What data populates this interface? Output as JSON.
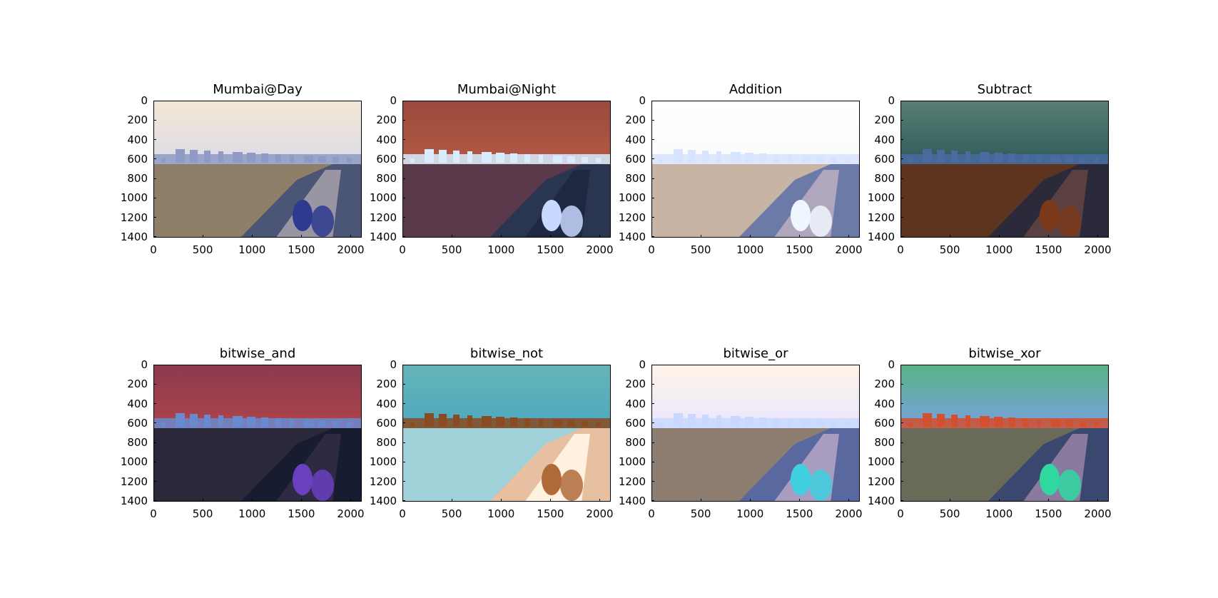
{
  "chart_data": [
    {
      "type": "image",
      "title": "Mumbai@Day",
      "xlim": [
        0,
        2112
      ],
      "ylim": [
        1408,
        0
      ],
      "xticks": [
        0,
        500,
        1000,
        1500,
        2000
      ],
      "yticks": [
        0,
        200,
        400,
        600,
        800,
        1000,
        1200,
        1400
      ],
      "colors": {
        "sky_top": "#f4e6d6",
        "sky_bottom": "#dadce8",
        "city": "#8f9bc4",
        "sea": "#8f7e68",
        "rocks": "#4b5677",
        "walk": "#9a95a2",
        "figures": "#2d3a8f"
      }
    },
    {
      "type": "image",
      "title": "Mumbai@Night",
      "xlim": [
        0,
        2112
      ],
      "ylim": [
        1408,
        0
      ],
      "xticks": [
        0,
        500,
        1000,
        1500,
        2000
      ],
      "yticks": [
        0,
        200,
        400,
        600,
        800,
        1000,
        1200,
        1400
      ],
      "colors": {
        "sky_top": "#9a4a3c",
        "sky_bottom": "#b45a45",
        "city": "#d8ecff",
        "sea": "#5a3a4a",
        "rocks": "#2a3550",
        "walk": "#1e2840",
        "figures": "#c8d8ff"
      }
    },
    {
      "type": "image",
      "title": "Addition",
      "xlim": [
        0,
        2112
      ],
      "ylim": [
        1408,
        0
      ],
      "xticks": [
        0,
        500,
        1000,
        1500,
        2000
      ],
      "yticks": [
        0,
        200,
        400,
        600,
        800,
        1000,
        1200,
        1400
      ],
      "colors": {
        "sky_top": "#ffffff",
        "sky_bottom": "#fbfbfb",
        "city": "#d7e4ff",
        "sea": "#c8b4a4",
        "rocks": "#6c7aa8",
        "walk": "#b0a6be",
        "figures": "#f0f6ff"
      }
    },
    {
      "type": "image",
      "title": "Subtract",
      "xlim": [
        0,
        2112
      ],
      "ylim": [
        1408,
        0
      ],
      "xticks": [
        0,
        500,
        1000,
        1500,
        2000
      ],
      "yticks": [
        0,
        200,
        400,
        600,
        800,
        1000,
        1200,
        1400
      ],
      "colors": {
        "sky_top": "#587e74",
        "sky_bottom": "#2c5a5a",
        "city": "#4a6aa0",
        "sea": "#5c3420",
        "rocks": "#2a2a3a",
        "walk": "#5a4040",
        "figures": "#7a3a1a"
      }
    },
    {
      "type": "image",
      "title": "bitwise_and",
      "xlim": [
        0,
        2112
      ],
      "ylim": [
        1408,
        0
      ],
      "xticks": [
        0,
        500,
        1000,
        1500,
        2000
      ],
      "yticks": [
        0,
        200,
        400,
        600,
        800,
        1000,
        1200,
        1400
      ],
      "colors": {
        "sky_top": "#8a3a50",
        "sky_bottom": "#b0444a",
        "city": "#6a8ad0",
        "sea": "#2a2a3a",
        "rocks": "#181c30",
        "walk": "#2e2a44",
        "figures": "#6a40c0"
      }
    },
    {
      "type": "image",
      "title": "bitwise_not",
      "xlim": [
        0,
        2112
      ],
      "ylim": [
        1408,
        0
      ],
      "xticks": [
        0,
        500,
        1000,
        1500,
        2000
      ],
      "yticks": [
        0,
        200,
        400,
        600,
        800,
        1000,
        1200,
        1400
      ],
      "colors": {
        "sky_top": "#66b4b8",
        "sky_bottom": "#4ca8c0",
        "city": "#8a4a22",
        "sea": "#a0d0d8",
        "rocks": "#e6c0a0",
        "walk": "#fff0e0",
        "figures": "#b06a3a"
      }
    },
    {
      "type": "image",
      "title": "bitwise_or",
      "xlim": [
        0,
        2112
      ],
      "ylim": [
        1408,
        0
      ],
      "xticks": [
        0,
        500,
        1000,
        1500,
        2000
      ],
      "yticks": [
        0,
        200,
        400,
        600,
        800,
        1000,
        1200,
        1400
      ],
      "colors": {
        "sky_top": "#fff4e8",
        "sky_bottom": "#e8e6ff",
        "city": "#c8d8ff",
        "sea": "#8e7e72",
        "rocks": "#5a68a0",
        "walk": "#a89cc0",
        "figures": "#40d0e0"
      }
    },
    {
      "type": "image",
      "title": "bitwise_xor",
      "xlim": [
        0,
        2112
      ],
      "ylim": [
        1408,
        0
      ],
      "xticks": [
        0,
        500,
        1000,
        1500,
        2000
      ],
      "yticks": [
        0,
        200,
        400,
        600,
        800,
        1000,
        1200,
        1400
      ],
      "colors": {
        "sky_top": "#58b488",
        "sky_bottom": "#7aa0e0",
        "city": "#d05030",
        "sea": "#6a6a58",
        "rocks": "#3a4870",
        "walk": "#8a7aa0",
        "figures": "#30d8a0"
      }
    }
  ]
}
